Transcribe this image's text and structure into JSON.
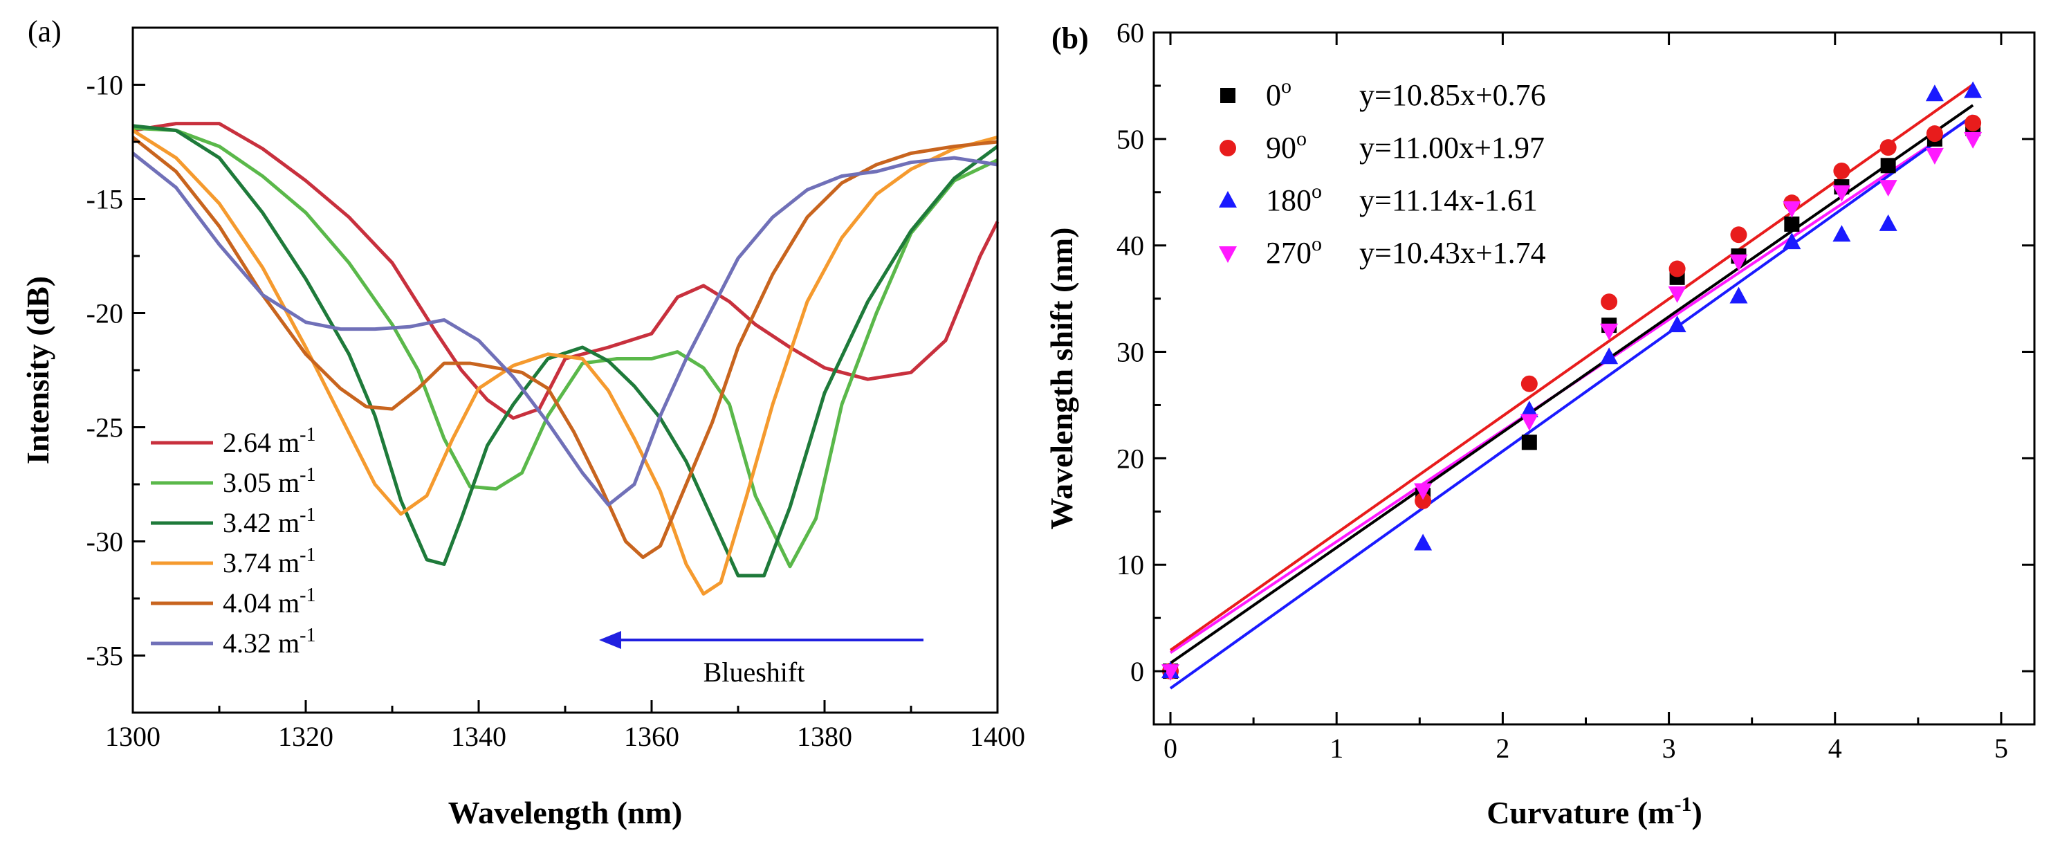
{
  "chart_data": [
    {
      "panel": "(a)",
      "type": "line",
      "xlabel": "Wavelength (nm)",
      "ylabel": "Intensity (dB)",
      "xlim": [
        1300,
        1400
      ],
      "ylim": [
        -37.5,
        -7.5
      ],
      "xticks": [
        1300,
        1320,
        1340,
        1360,
        1380,
        1400
      ],
      "yticks": [
        -35,
        -30,
        -25,
        -20,
        -15,
        -10
      ],
      "legend_position": "bottom-left",
      "annotation": "Blueshift",
      "series": [
        {
          "name": "2.64 m",
          "sup": "-1",
          "color": "#c8303d",
          "x": [
            1300,
            1305,
            1310,
            1315,
            1320,
            1325,
            1330,
            1335,
            1338,
            1341,
            1344,
            1347,
            1350,
            1355,
            1360,
            1363,
            1366,
            1369,
            1372,
            1376,
            1380,
            1385,
            1390,
            1394,
            1398,
            1400
          ],
          "y": [
            -12,
            -11.7,
            -11.7,
            -12.8,
            -14.2,
            -15.8,
            -17.8,
            -20.8,
            -22.5,
            -23.8,
            -24.6,
            -24.2,
            -22,
            -21.5,
            -20.9,
            -19.3,
            -18.8,
            -19.5,
            -20.5,
            -21.5,
            -22.4,
            -22.9,
            -22.6,
            -21.2,
            -17.5,
            -16
          ]
        },
        {
          "name": "3.05 m",
          "sup": "-1",
          "color": "#5ab84a",
          "x": [
            1300,
            1305,
            1310,
            1315,
            1320,
            1325,
            1330,
            1333,
            1336,
            1339,
            1342,
            1345,
            1348,
            1352,
            1356,
            1360,
            1363,
            1366,
            1369,
            1372,
            1376,
            1379,
            1382,
            1386,
            1390,
            1395,
            1400
          ],
          "y": [
            -11.9,
            -12,
            -12.7,
            -14,
            -15.6,
            -17.8,
            -20.5,
            -22.5,
            -25.5,
            -27.6,
            -27.7,
            -27,
            -24.5,
            -22.2,
            -22,
            -22,
            -21.7,
            -22.4,
            -24,
            -28,
            -31.1,
            -29,
            -24,
            -20,
            -16.5,
            -14.2,
            -13.3
          ]
        },
        {
          "name": "3.42 m",
          "sup": "-1",
          "color": "#1e7a3a",
          "x": [
            1300,
            1305,
            1310,
            1315,
            1320,
            1325,
            1328,
            1331,
            1334,
            1336,
            1338,
            1341,
            1344,
            1348,
            1352,
            1355,
            1358,
            1361,
            1364,
            1367,
            1370,
            1373,
            1376,
            1380,
            1385,
            1390,
            1395,
            1400
          ],
          "y": [
            -11.8,
            -12,
            -13.2,
            -15.6,
            -18.5,
            -21.8,
            -24.5,
            -28.2,
            -30.8,
            -31,
            -29,
            -25.8,
            -24,
            -22,
            -21.5,
            -22.1,
            -23.2,
            -24.6,
            -26.5,
            -29,
            -31.5,
            -31.5,
            -28.5,
            -23.5,
            -19.5,
            -16.4,
            -14.1,
            -12.7
          ]
        },
        {
          "name": "3.74 m",
          "sup": "-1",
          "color": "#f59a2e",
          "x": [
            1300,
            1305,
            1310,
            1315,
            1320,
            1324,
            1328,
            1331,
            1334,
            1337,
            1340,
            1344,
            1348,
            1352,
            1355,
            1358,
            1361,
            1364,
            1366,
            1368,
            1371,
            1374,
            1378,
            1382,
            1386,
            1390,
            1395,
            1400
          ],
          "y": [
            -12,
            -13.2,
            -15.2,
            -18,
            -21.5,
            -24.5,
            -27.5,
            -28.8,
            -28,
            -25.5,
            -23.3,
            -22.3,
            -21.8,
            -22,
            -23.4,
            -25.5,
            -27.8,
            -31,
            -32.3,
            -31.8,
            -28,
            -24,
            -19.5,
            -16.7,
            -14.8,
            -13.7,
            -12.8,
            -12.3
          ]
        },
        {
          "name": "4.04 m",
          "sup": "-1",
          "color": "#c8641e",
          "x": [
            1300,
            1305,
            1310,
            1315,
            1320,
            1324,
            1327,
            1330,
            1333,
            1336,
            1339,
            1342,
            1345,
            1348,
            1351,
            1354,
            1357,
            1359,
            1361,
            1364,
            1367,
            1370,
            1374,
            1378,
            1382,
            1386,
            1390,
            1395,
            1400
          ],
          "y": [
            -12.3,
            -13.8,
            -16.2,
            -19.2,
            -21.8,
            -23.3,
            -24.1,
            -24.2,
            -23.3,
            -22.2,
            -22.2,
            -22.4,
            -22.6,
            -23.3,
            -25.2,
            -27.5,
            -30,
            -30.7,
            -30.2,
            -27.5,
            -24.8,
            -21.5,
            -18.3,
            -15.8,
            -14.3,
            -13.5,
            -13,
            -12.7,
            -12.5
          ]
        },
        {
          "name": "4.32 m",
          "sup": "-1",
          "color": "#7070b8",
          "x": [
            1300,
            1305,
            1310,
            1315,
            1320,
            1324,
            1328,
            1332,
            1336,
            1340,
            1344,
            1348,
            1352,
            1355,
            1358,
            1361,
            1364,
            1367,
            1370,
            1374,
            1378,
            1382,
            1386,
            1390,
            1395,
            1400
          ],
          "y": [
            -13,
            -14.5,
            -17,
            -19.2,
            -20.4,
            -20.7,
            -20.7,
            -20.6,
            -20.3,
            -21.2,
            -22.8,
            -24.8,
            -27,
            -28.4,
            -27.5,
            -24.5,
            -22,
            -19.8,
            -17.6,
            -15.8,
            -14.6,
            -14,
            -13.8,
            -13.4,
            -13.2,
            -13.5
          ]
        }
      ]
    },
    {
      "panel": "(b)",
      "type": "scatter",
      "xlabel": "Curvature (m",
      "xlabel_sup": "-1",
      "xlabel_close": ")",
      "ylabel": "Wavelength shift (nm)",
      "xlim": [
        -0.1,
        5.2
      ],
      "ylim": [
        -5,
        60
      ],
      "xticks": [
        0,
        1,
        2,
        3,
        4,
        5
      ],
      "yticks": [
        0,
        10,
        20,
        30,
        40,
        50,
        60
      ],
      "legend_position": "top-left",
      "series": [
        {
          "name": "0",
          "sup": "o",
          "marker": "square",
          "color": "#000000",
          "fit": "y=10.85x+0.76",
          "slope": 10.85,
          "intercept": 0.76,
          "x": [
            0,
            1.52,
            2.16,
            2.64,
            3.05,
            3.42,
            3.74,
            4.04,
            4.32,
            4.6,
            4.83
          ],
          "y": [
            0,
            16.5,
            21.5,
            32.5,
            37,
            39,
            42,
            45.5,
            47.5,
            50,
            51
          ]
        },
        {
          "name": "90",
          "sup": "o",
          "marker": "circle",
          "color": "#e81c1c",
          "fit": "y=11.00x+1.97",
          "slope": 11.0,
          "intercept": 1.97,
          "x": [
            0,
            1.52,
            2.16,
            2.64,
            3.05,
            3.42,
            3.74,
            4.04,
            4.32,
            4.6,
            4.83
          ],
          "y": [
            0,
            16,
            27,
            34.7,
            37.8,
            41,
            44,
            47,
            49.2,
            50.5,
            51.5
          ]
        },
        {
          "name": "180",
          "sup": "o",
          "marker": "triangle-up",
          "color": "#1a1aff",
          "fit": "y=11.14x-1.61",
          "slope": 11.14,
          "intercept": -1.61,
          "x": [
            0,
            1.52,
            2.16,
            2.64,
            3.05,
            3.42,
            3.74,
            4.04,
            4.32,
            4.6,
            4.83
          ],
          "y": [
            0,
            12,
            24.5,
            29.5,
            32.5,
            35.2,
            40.3,
            41,
            42,
            54.2,
            54.5
          ]
        },
        {
          "name": "270",
          "sup": "o",
          "marker": "triangle-down",
          "color": "#ff1aff",
          "fit": "y=10.43x+1.74",
          "slope": 10.43,
          "intercept": 1.74,
          "x": [
            0,
            1.52,
            2.16,
            2.64,
            3.05,
            3.42,
            3.74,
            4.04,
            4.32,
            4.6,
            4.83
          ],
          "y": [
            0,
            17,
            23.5,
            32,
            35.5,
            38.5,
            43.5,
            45,
            45.5,
            48.5,
            50
          ]
        }
      ]
    }
  ]
}
